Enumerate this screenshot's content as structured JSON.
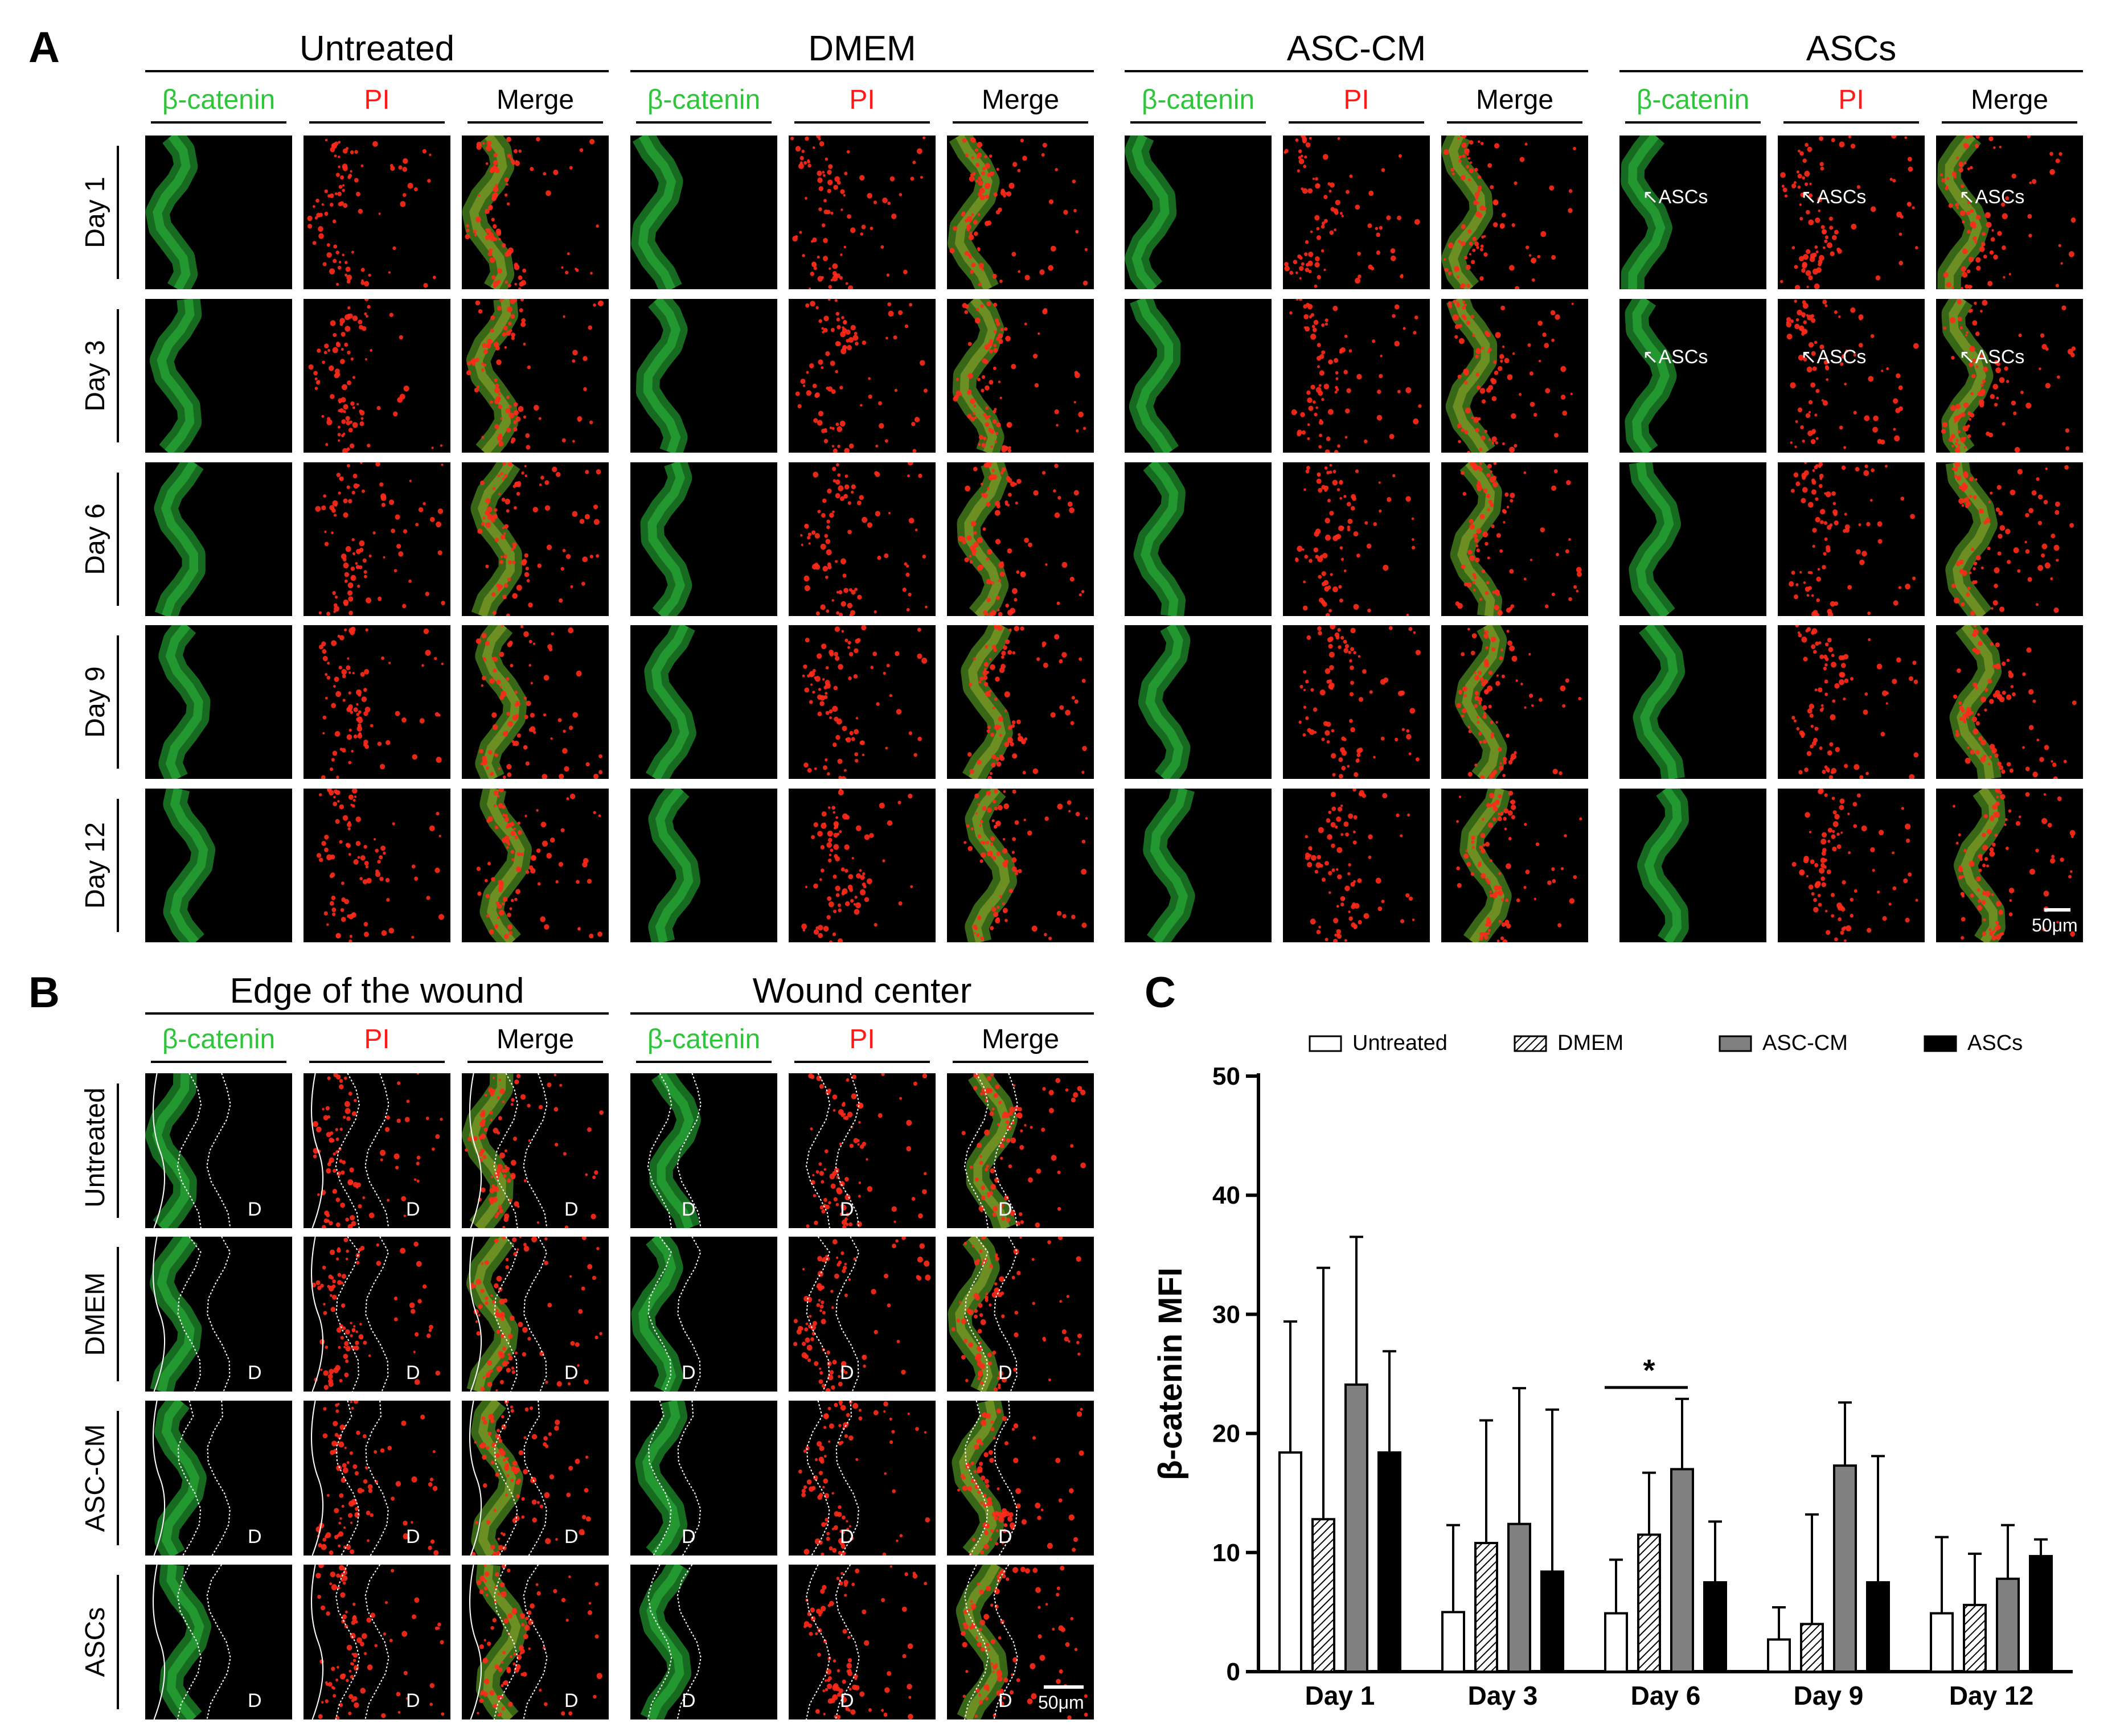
{
  "panel_a": {
    "letter": "A",
    "groups": [
      "Untreated",
      "DMEM",
      "ASC-CM",
      "ASCs"
    ],
    "channels": [
      "β-catenin",
      "PI",
      "Merge"
    ],
    "rows": [
      "Day 1",
      "Day 3",
      "Day 6",
      "Day 9",
      "Day 12"
    ],
    "asc_annotation": "ASCs",
    "scale_bar": "50μm"
  },
  "panel_b": {
    "letter": "B",
    "groups": [
      "Edge of the wound",
      "Wound center"
    ],
    "channels": [
      "β-catenin",
      "PI",
      "Merge"
    ],
    "rows": [
      "Untreated",
      "DMEM",
      "ASC-CM",
      "ASCs"
    ],
    "dermis_label": "D",
    "scale_bar": "50μm"
  },
  "panel_c": {
    "letter": "C",
    "significance": "*"
  },
  "colors": {
    "green_label": "#2ec53a",
    "red_label": "#ff1a1a",
    "asc_cm_bar": "#808080",
    "ascs_bar": "#000000"
  },
  "chart_data": {
    "type": "bar",
    "categories": [
      "Day 1",
      "Day 3",
      "Day 6",
      "Day 9",
      "Day 12"
    ],
    "series": [
      {
        "name": "Untreated",
        "values": [
          18.4,
          5.0,
          4.9,
          2.7,
          4.9
        ],
        "errors": [
          11.0,
          7.3,
          4.5,
          2.7,
          6.4
        ]
      },
      {
        "name": "DMEM",
        "values": [
          12.8,
          10.8,
          11.5,
          4.0,
          5.6
        ],
        "errors": [
          21.1,
          10.3,
          5.2,
          9.2,
          4.3
        ]
      },
      {
        "name": "ASC-CM",
        "values": [
          24.1,
          12.4,
          17.0,
          17.3,
          7.8
        ],
        "errors": [
          12.4,
          11.4,
          5.9,
          5.3,
          4.5
        ]
      },
      {
        "name": "ASCs",
        "values": [
          18.4,
          8.4,
          7.5,
          7.5,
          9.7
        ],
        "errors": [
          8.5,
          13.6,
          5.1,
          10.6,
          1.4
        ]
      }
    ],
    "ylabel": "β-catenin MFI",
    "xlabel": "",
    "ylim": [
      0,
      50
    ],
    "yticks": [
      0,
      10,
      20,
      30,
      40,
      50
    ],
    "legend_position": "top",
    "significance": {
      "label": "*",
      "category": "Day 6",
      "between": [
        "Untreated",
        "ASC-CM"
      ]
    }
  }
}
